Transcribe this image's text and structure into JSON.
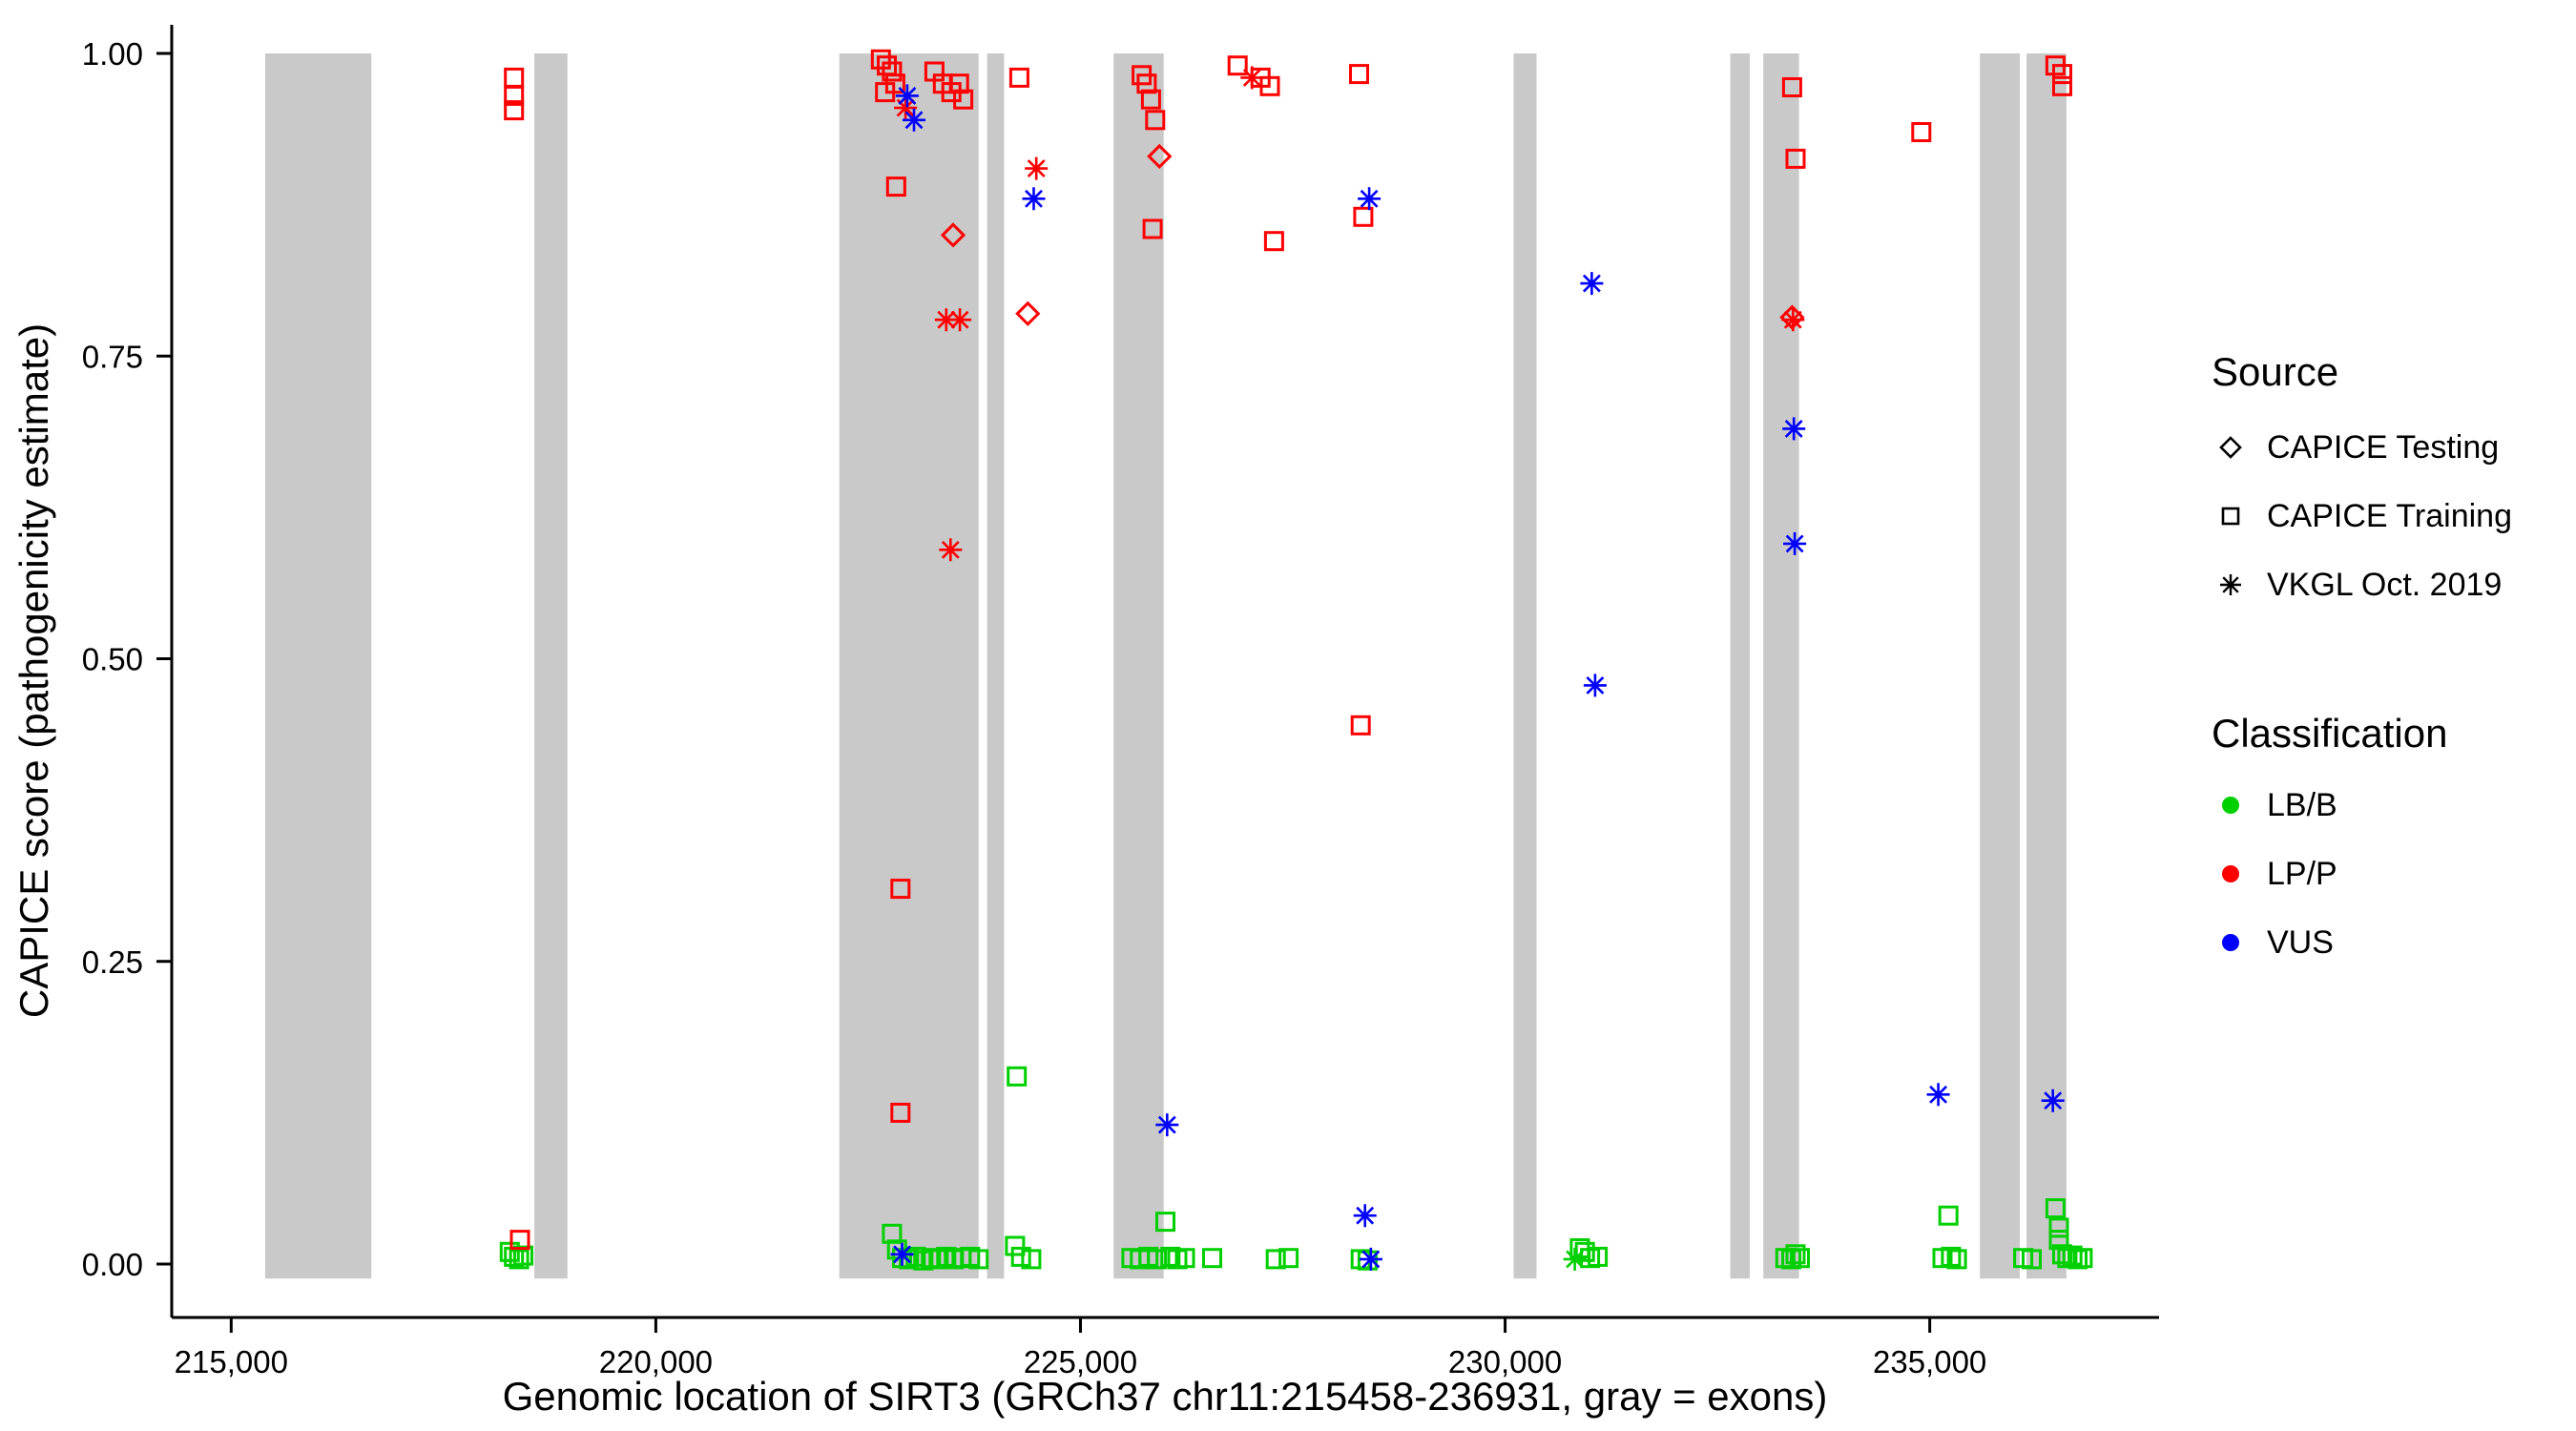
{
  "chart_data": {
    "type": "scatter",
    "title": "",
    "xlabel": "Genomic location of SIRT3 (GRCh37 chr11:215458-236931, gray = exons)",
    "ylabel": "CAPICE score (pathogenicity estimate)",
    "xlim": [
      214300,
      237700
    ],
    "ylim": [
      -0.044,
      1.024
    ],
    "x_ticks": [
      215000,
      220000,
      225000,
      230000,
      235000
    ],
    "x_tick_labels": [
      "215,000",
      "220,000",
      "225,000",
      "230,000",
      "235,000"
    ],
    "y_ticks": [
      0,
      0.25,
      0.5,
      0.75,
      1
    ],
    "y_tick_labels": [
      "0.00",
      "0.25",
      "0.50",
      "0.75",
      "1.00"
    ],
    "grid": "off",
    "exon_color": "#c9c9c9",
    "exons": [
      [
        215400,
        216650
      ],
      [
        218570,
        218960
      ],
      [
        222160,
        223800
      ],
      [
        223900,
        224100
      ],
      [
        225390,
        225980
      ],
      [
        230100,
        230370
      ],
      [
        232650,
        232880
      ],
      [
        233040,
        233460
      ],
      [
        235590,
        236060
      ],
      [
        236140,
        236610
      ]
    ],
    "legend": {
      "position": "right",
      "source_title": "Source",
      "source_items": [
        {
          "label": "CAPICE Testing",
          "shape": "diamond"
        },
        {
          "label": "CAPICE Training",
          "shape": "square"
        },
        {
          "label": "VKGL Oct. 2019",
          "shape": "asterisk"
        }
      ],
      "classification_title": "Classification",
      "classification_items": [
        {
          "label": "LB/B",
          "color": "#00d000"
        },
        {
          "label": "LP/P",
          "color": "#ff0000"
        },
        {
          "label": "VUS",
          "color": "#0000ff"
        }
      ]
    },
    "series": [
      {
        "name": "LB/B - CAPICE Training",
        "classification": "LB/B",
        "source": "CAPICE Training",
        "shape": "square",
        "color": "#00d000",
        "points": [
          [
            218280,
            0.01
          ],
          [
            218330,
            0.006
          ],
          [
            218390,
            0.004
          ],
          [
            218440,
            0.007
          ],
          [
            222780,
            0.025
          ],
          [
            222840,
            0.012
          ],
          [
            222900,
            0.005
          ],
          [
            222980,
            0.004
          ],
          [
            223060,
            0.006
          ],
          [
            223150,
            0.003
          ],
          [
            223240,
            0.005
          ],
          [
            223330,
            0.004
          ],
          [
            223420,
            0.006
          ],
          [
            223510,
            0.004
          ],
          [
            223600,
            0.005
          ],
          [
            223700,
            0.006
          ],
          [
            223800,
            0.004
          ],
          [
            224230,
            0.015
          ],
          [
            224250,
            0.155
          ],
          [
            224300,
            0.006
          ],
          [
            224420,
            0.004
          ],
          [
            225600,
            0.005
          ],
          [
            225700,
            0.004
          ],
          [
            225800,
            0.006
          ],
          [
            225900,
            0.004
          ],
          [
            226000,
            0.035
          ],
          [
            226060,
            0.006
          ],
          [
            226140,
            0.004
          ],
          [
            226230,
            0.005
          ],
          [
            226550,
            0.005
          ],
          [
            227300,
            0.004
          ],
          [
            227450,
            0.005
          ],
          [
            228300,
            0.004
          ],
          [
            228380,
            0.003
          ],
          [
            230880,
            0.013
          ],
          [
            230940,
            0.01
          ],
          [
            231000,
            0.005
          ],
          [
            231090,
            0.006
          ],
          [
            233300,
            0.005
          ],
          [
            233370,
            0.004
          ],
          [
            233420,
            0.008
          ],
          [
            233470,
            0.005
          ],
          [
            235150,
            0.005
          ],
          [
            235220,
            0.04
          ],
          [
            235250,
            0.006
          ],
          [
            235320,
            0.004
          ],
          [
            236100,
            0.005
          ],
          [
            236200,
            0.004
          ],
          [
            236480,
            0.046
          ],
          [
            236520,
            0.03
          ],
          [
            236520,
            0.02
          ],
          [
            236560,
            0.008
          ],
          [
            236620,
            0.005
          ],
          [
            236680,
            0.007
          ],
          [
            236740,
            0.004
          ],
          [
            236800,
            0.005
          ]
        ]
      },
      {
        "name": "LB/B - VKGL Oct. 2019",
        "classification": "LB/B",
        "source": "VKGL Oct. 2019",
        "shape": "asterisk",
        "color": "#00d000",
        "points": [
          [
            230820,
            0.004
          ]
        ]
      },
      {
        "name": "LP/P - CAPICE Testing",
        "classification": "LP/P",
        "source": "CAPICE Testing",
        "shape": "diamond",
        "color": "#ff0000",
        "points": [
          [
            223500,
            0.85
          ],
          [
            224380,
            0.785
          ],
          [
            225930,
            0.915
          ],
          [
            233380,
            0.782
          ]
        ]
      },
      {
        "name": "LP/P - CAPICE Training",
        "classification": "LP/P",
        "source": "CAPICE Training",
        "shape": "square",
        "color": "#ff0000",
        "points": [
          [
            218330,
            0.98
          ],
          [
            218330,
            0.965
          ],
          [
            218330,
            0.953
          ],
          [
            218400,
            0.02
          ],
          [
            222650,
            0.995
          ],
          [
            222720,
            0.99
          ],
          [
            222780,
            0.985
          ],
          [
            222820,
            0.975
          ],
          [
            222700,
            0.968
          ],
          [
            223280,
            0.985
          ],
          [
            223380,
            0.975
          ],
          [
            223480,
            0.968
          ],
          [
            223570,
            0.975
          ],
          [
            223620,
            0.962
          ],
          [
            222830,
            0.89
          ],
          [
            222880,
            0.31
          ],
          [
            222880,
            0.125
          ],
          [
            224280,
            0.98
          ],
          [
            225720,
            0.982
          ],
          [
            225780,
            0.975
          ],
          [
            225830,
            0.962
          ],
          [
            225880,
            0.945
          ],
          [
            225850,
            0.855
          ],
          [
            226850,
            0.99
          ],
          [
            227120,
            0.98
          ],
          [
            227230,
            0.973
          ],
          [
            227280,
            0.845
          ],
          [
            228280,
            0.983
          ],
          [
            228330,
            0.865
          ],
          [
            228300,
            0.445
          ],
          [
            233380,
            0.972
          ],
          [
            233420,
            0.913
          ],
          [
            234900,
            0.935
          ],
          [
            236480,
            0.99
          ],
          [
            236560,
            0.983
          ],
          [
            236560,
            0.973
          ]
        ]
      },
      {
        "name": "LP/P - VKGL Oct. 2019",
        "classification": "LP/P",
        "source": "VKGL Oct. 2019",
        "shape": "asterisk",
        "color": "#ff0000",
        "points": [
          [
            222940,
            0.955
          ],
          [
            223420,
            0.78
          ],
          [
            223580,
            0.78
          ],
          [
            223470,
            0.59
          ],
          [
            224480,
            0.905
          ],
          [
            227020,
            0.98
          ],
          [
            233390,
            0.78
          ]
        ]
      },
      {
        "name": "VUS - VKGL Oct. 2019",
        "classification": "VUS",
        "source": "VKGL Oct. 2019",
        "shape": "asterisk",
        "color": "#0000ff",
        "points": [
          [
            222900,
            0.008
          ],
          [
            222960,
            0.965
          ],
          [
            223040,
            0.945
          ],
          [
            224450,
            0.88
          ],
          [
            226020,
            0.115
          ],
          [
            228400,
            0.88
          ],
          [
            228350,
            0.04
          ],
          [
            228420,
            0.004
          ],
          [
            231020,
            0.81
          ],
          [
            231060,
            0.478
          ],
          [
            233400,
            0.69
          ],
          [
            233410,
            0.595
          ],
          [
            235100,
            0.14
          ],
          [
            236450,
            0.135
          ]
        ]
      }
    ]
  }
}
